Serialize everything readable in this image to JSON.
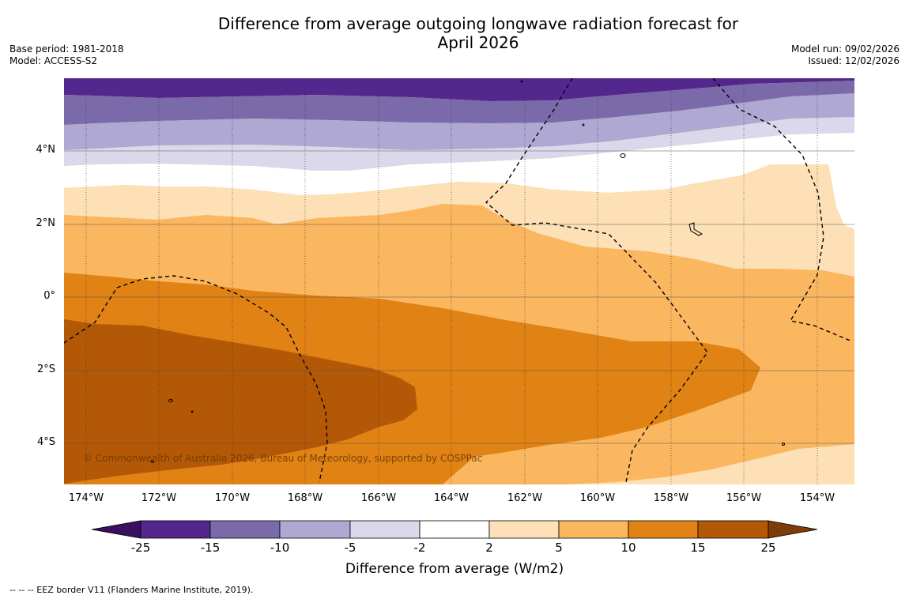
{
  "title_line1": "Difference from average outgoing longwave radiation forecast for",
  "title_line2": "April 2026",
  "base_period": "Base period: 1981-2018",
  "model": "Model: ACCESS-S2",
  "model_run": "Model run: 09/02/2026",
  "issued": "Issued: 12/02/2026",
  "lat_labels": [
    "4°N",
    "2°N",
    "0°",
    "2°S",
    "4°S"
  ],
  "lon_labels": [
    "174°W",
    "172°W",
    "170°W",
    "168°W",
    "166°W",
    "164°W",
    "162°W",
    "160°W",
    "158°W",
    "156°W",
    "154°W"
  ],
  "copyright": "© Commonwealth of Australia 2026, Bureau of Meteorology, supported by COSPPac",
  "colorbar": {
    "ticks": [
      "-25",
      "-15",
      "-10",
      "-5",
      "-2",
      "2",
      "5",
      "10",
      "15",
      "25"
    ],
    "title": "Difference from average (W/m2)",
    "colors": [
      "#3a0f5e",
      "#54278f",
      "#7b6aaa",
      "#aea8d2",
      "#d9d9eb",
      "#ffffff",
      "#fde0b5",
      "#fbb660",
      "#e08214",
      "#b35806",
      "#7f3b08"
    ]
  },
  "footnote": "--  --  -- EEZ border V11 (Flanders Marine Institute, 2019)."
}
